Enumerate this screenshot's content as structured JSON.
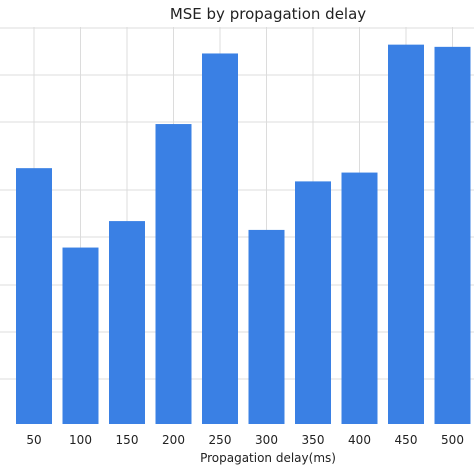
{
  "chart_data": {
    "type": "bar",
    "title": "MSE by propagation delay",
    "xlabel": "Propagation delay(ms)",
    "ylabel": "",
    "categories": [
      "50",
      "100",
      "150",
      "200",
      "250",
      "300",
      "350",
      "400",
      "450",
      "500"
    ],
    "values": [
      0.58,
      0.4,
      0.46,
      0.68,
      0.84,
      0.44,
      0.55,
      0.57,
      0.86,
      0.855
    ],
    "ylim": [
      0,
      0.9
    ],
    "grid": true,
    "bar_color": "#3a80e4",
    "grid_color": "#dcdcdc"
  }
}
